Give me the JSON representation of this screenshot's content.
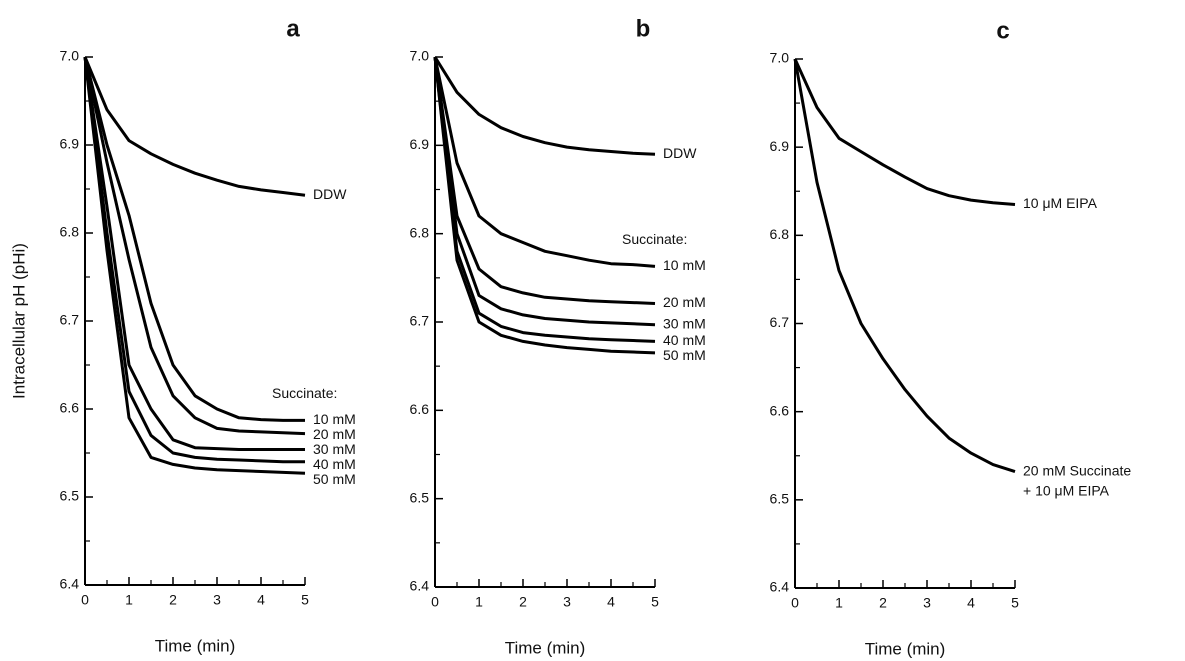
{
  "chart_data": [
    {
      "type": "line",
      "title": "a",
      "x_label": "Time (min)",
      "y_label": "Intracellular pH (pHi)",
      "annotations": [
        "Succinate:"
      ],
      "x": [
        0,
        0.5,
        1,
        1.5,
        2,
        2.5,
        3,
        3.5,
        4,
        4.5,
        5
      ],
      "xlim": [
        0,
        5
      ],
      "xticks": [
        0,
        1,
        2,
        3,
        4,
        5
      ],
      "xminor": [
        0.5,
        1.5,
        2.5,
        3.5,
        4.5
      ],
      "ylim": [
        6.4,
        7.0
      ],
      "yticks": [
        6.4,
        6.5,
        6.6,
        6.7,
        6.8,
        6.9,
        {
          "value": 7,
          "label": "7.0"
        }
      ],
      "yminor": [
        6.45,
        6.55,
        6.65,
        6.75,
        6.85,
        6.95
      ],
      "series": [
        {
          "name": "DDW",
          "color": "#000000",
          "values": [
            7.0,
            6.94,
            6.905,
            6.89,
            6.878,
            6.868,
            6.86,
            6.853,
            6.849,
            6.846,
            6.843
          ]
        },
        {
          "name": "10 mM",
          "color": "#000000",
          "values": [
            7.0,
            6.9,
            6.82,
            6.72,
            6.65,
            6.615,
            6.6,
            6.59,
            6.588,
            6.587,
            6.587
          ]
        },
        {
          "name": "20 mM",
          "color": "#000000",
          "values": [
            7.0,
            6.88,
            6.77,
            6.67,
            6.615,
            6.59,
            6.578,
            6.575,
            6.574,
            6.573,
            6.572
          ]
        },
        {
          "name": "30 mM",
          "color": "#000000",
          "values": [
            7.0,
            6.83,
            6.65,
            6.6,
            6.565,
            6.556,
            6.555,
            6.554,
            6.554,
            6.554,
            6.554
          ]
        },
        {
          "name": "40 mM",
          "color": "#000000",
          "values": [
            7.0,
            6.8,
            6.62,
            6.57,
            6.55,
            6.545,
            6.543,
            6.542,
            6.541,
            6.54,
            6.54
          ]
        },
        {
          "name": "50 mM",
          "color": "#000000",
          "values": [
            7.0,
            6.78,
            6.59,
            6.545,
            6.537,
            6.533,
            6.531,
            6.53,
            6.529,
            6.528,
            6.527
          ]
        }
      ]
    },
    {
      "type": "line",
      "title": "b",
      "x_label": "Time (min)",
      "annotations": [
        "Succinate:"
      ],
      "x": [
        0,
        0.5,
        1,
        1.5,
        2,
        2.5,
        3,
        3.5,
        4,
        4.5,
        5
      ],
      "xlim": [
        0,
        5
      ],
      "xticks": [
        0,
        1,
        2,
        3,
        4,
        5
      ],
      "xminor": [
        0.5,
        1.5,
        2.5,
        3.5,
        4.5
      ],
      "ylim": [
        6.4,
        7.0
      ],
      "yticks": [
        6.4,
        6.5,
        6.6,
        6.7,
        6.8,
        6.9,
        {
          "value": 7,
          "label": "7.0"
        }
      ],
      "yminor": [
        6.45,
        6.55,
        6.65,
        6.75,
        6.85,
        6.95
      ],
      "series": [
        {
          "name": "DDW",
          "color": "#000000",
          "values": [
            7.0,
            6.96,
            6.935,
            6.92,
            6.91,
            6.903,
            6.898,
            6.895,
            6.893,
            6.891,
            6.89
          ]
        },
        {
          "name": "10 mM",
          "color": "#000000",
          "values": [
            7.0,
            6.88,
            6.82,
            6.8,
            6.79,
            6.78,
            6.775,
            6.77,
            6.766,
            6.765,
            6.763
          ]
        },
        {
          "name": "20 mM",
          "color": "#000000",
          "values": [
            7.0,
            6.82,
            6.76,
            6.74,
            6.733,
            6.728,
            6.726,
            6.724,
            6.723,
            6.722,
            6.721
          ]
        },
        {
          "name": "30 mM",
          "color": "#000000",
          "values": [
            7.0,
            6.8,
            6.73,
            6.715,
            6.708,
            6.704,
            6.702,
            6.7,
            6.699,
            6.698,
            6.697
          ]
        },
        {
          "name": "40 mM",
          "color": "#000000",
          "values": [
            7.0,
            6.78,
            6.71,
            6.695,
            6.688,
            6.685,
            6.683,
            6.681,
            6.68,
            6.679,
            6.678
          ]
        },
        {
          "name": "50 mM",
          "color": "#000000",
          "values": [
            7.0,
            6.77,
            6.7,
            6.685,
            6.678,
            6.674,
            6.671,
            6.669,
            6.667,
            6.666,
            6.665
          ]
        }
      ]
    },
    {
      "type": "line",
      "title": "c",
      "x_label": "Time (min)",
      "x": [
        0,
        0.5,
        1,
        1.5,
        2,
        2.5,
        3,
        3.5,
        4,
        4.5,
        5
      ],
      "xlim": [
        0,
        5
      ],
      "xticks": [
        0,
        1,
        2,
        3,
        4,
        5
      ],
      "xminor": [
        0.5,
        1.5,
        2.5,
        3.5,
        4.5
      ],
      "ylim": [
        6.4,
        7.0
      ],
      "yticks": [
        6.4,
        6.5,
        6.6,
        6.7,
        6.8,
        6.9,
        {
          "value": 7,
          "label": "7.0"
        }
      ],
      "yminor": [
        6.45,
        6.55,
        6.65,
        6.75,
        6.85,
        6.95
      ],
      "series": [
        {
          "name": "10 μM EIPA",
          "color": "#000000",
          "values": [
            7.0,
            6.945,
            6.91,
            6.895,
            6.88,
            6.866,
            6.853,
            6.845,
            6.84,
            6.837,
            6.835
          ]
        },
        {
          "name": [
            "20 mM Succinate",
            "+ 10 μM EIPA"
          ],
          "color": "#000000",
          "values": [
            7.0,
            6.86,
            6.76,
            6.7,
            6.66,
            6.625,
            6.595,
            6.57,
            6.553,
            6.54,
            6.532
          ]
        }
      ]
    }
  ]
}
